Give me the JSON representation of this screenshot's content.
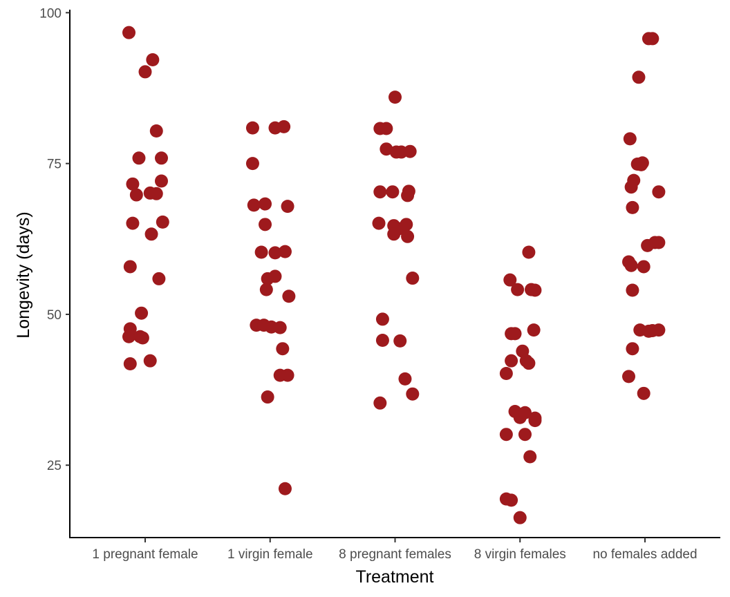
{
  "chart_data": {
    "type": "scatter",
    "xlabel": "Treatment",
    "ylabel": "Longevity (days)",
    "ylim": [
      13,
      100.5
    ],
    "yticks": [
      25,
      50,
      75,
      100
    ],
    "grid": false,
    "legend": "none",
    "point_color": "#9e1a1d",
    "categories": [
      "1 pregnant female",
      "1 virgin female",
      "8 pregnant females",
      "8 virgin females",
      "no females added"
    ],
    "points": [
      {
        "x": "1 pregnant female",
        "jitter": -0.13,
        "y": 96.7
      },
      {
        "x": "1 pregnant female",
        "jitter": 0.06,
        "y": 92.2
      },
      {
        "x": "1 pregnant female",
        "jitter": 0.0,
        "y": 90.2
      },
      {
        "x": "1 pregnant female",
        "jitter": 0.09,
        "y": 80.4
      },
      {
        "x": "1 pregnant female",
        "jitter": -0.05,
        "y": 75.9
      },
      {
        "x": "1 pregnant female",
        "jitter": 0.13,
        "y": 75.9
      },
      {
        "x": "1 pregnant female",
        "jitter": -0.1,
        "y": 71.6
      },
      {
        "x": "1 pregnant female",
        "jitter": 0.13,
        "y": 72.1
      },
      {
        "x": "1 pregnant female",
        "jitter": -0.07,
        "y": 69.8
      },
      {
        "x": "1 pregnant female",
        "jitter": 0.04,
        "y": 70.1
      },
      {
        "x": "1 pregnant female",
        "jitter": 0.09,
        "y": 70.0
      },
      {
        "x": "1 pregnant female",
        "jitter": -0.1,
        "y": 65.1
      },
      {
        "x": "1 pregnant female",
        "jitter": 0.14,
        "y": 65.3
      },
      {
        "x": "1 pregnant female",
        "jitter": 0.05,
        "y": 63.3
      },
      {
        "x": "1 pregnant female",
        "jitter": -0.12,
        "y": 57.9
      },
      {
        "x": "1 pregnant female",
        "jitter": 0.11,
        "y": 55.9
      },
      {
        "x": "1 pregnant female",
        "jitter": -0.03,
        "y": 50.2
      },
      {
        "x": "1 pregnant female",
        "jitter": -0.12,
        "y": 47.6
      },
      {
        "x": "1 pregnant female",
        "jitter": -0.13,
        "y": 46.3
      },
      {
        "x": "1 pregnant female",
        "jitter": -0.04,
        "y": 46.3
      },
      {
        "x": "1 pregnant female",
        "jitter": -0.02,
        "y": 46.1
      },
      {
        "x": "1 pregnant female",
        "jitter": 0.04,
        "y": 42.3
      },
      {
        "x": "1 pregnant female",
        "jitter": -0.12,
        "y": 41.8
      },
      {
        "x": "1 virgin female",
        "jitter": -0.14,
        "y": 80.9
      },
      {
        "x": "1 virgin female",
        "jitter": 0.04,
        "y": 80.9
      },
      {
        "x": "1 virgin female",
        "jitter": 0.11,
        "y": 81.1
      },
      {
        "x": "1 virgin female",
        "jitter": -0.14,
        "y": 75.0
      },
      {
        "x": "1 virgin female",
        "jitter": -0.13,
        "y": 68.1
      },
      {
        "x": "1 virgin female",
        "jitter": -0.04,
        "y": 68.3
      },
      {
        "x": "1 virgin female",
        "jitter": 0.14,
        "y": 67.9
      },
      {
        "x": "1 virgin female",
        "jitter": -0.04,
        "y": 64.9
      },
      {
        "x": "1 virgin female",
        "jitter": -0.07,
        "y": 60.3
      },
      {
        "x": "1 virgin female",
        "jitter": 0.04,
        "y": 60.2
      },
      {
        "x": "1 virgin female",
        "jitter": 0.12,
        "y": 60.4
      },
      {
        "x": "1 virgin female",
        "jitter": -0.02,
        "y": 55.9
      },
      {
        "x": "1 virgin female",
        "jitter": 0.04,
        "y": 56.3
      },
      {
        "x": "1 virgin female",
        "jitter": -0.03,
        "y": 54.1
      },
      {
        "x": "1 virgin female",
        "jitter": 0.15,
        "y": 53.0
      },
      {
        "x": "1 virgin female",
        "jitter": -0.11,
        "y": 48.2
      },
      {
        "x": "1 virgin female",
        "jitter": -0.05,
        "y": 48.2
      },
      {
        "x": "1 virgin female",
        "jitter": 0.01,
        "y": 47.9
      },
      {
        "x": "1 virgin female",
        "jitter": 0.08,
        "y": 47.8
      },
      {
        "x": "1 virgin female",
        "jitter": 0.1,
        "y": 44.3
      },
      {
        "x": "1 virgin female",
        "jitter": 0.08,
        "y": 39.9
      },
      {
        "x": "1 virgin female",
        "jitter": 0.14,
        "y": 39.9
      },
      {
        "x": "1 virgin female",
        "jitter": -0.02,
        "y": 36.3
      },
      {
        "x": "1 virgin female",
        "jitter": 0.12,
        "y": 21.1
      },
      {
        "x": "8 pregnant females",
        "jitter": -0.12,
        "y": 80.8
      },
      {
        "x": "8 pregnant females",
        "jitter": -0.07,
        "y": 80.8
      },
      {
        "x": "8 pregnant females",
        "jitter": 0.0,
        "y": 86.0
      },
      {
        "x": "8 pregnant females",
        "jitter": -0.07,
        "y": 77.4
      },
      {
        "x": "8 pregnant females",
        "jitter": 0.01,
        "y": 76.9
      },
      {
        "x": "8 pregnant females",
        "jitter": 0.05,
        "y": 76.9
      },
      {
        "x": "8 pregnant females",
        "jitter": 0.12,
        "y": 77.0
      },
      {
        "x": "8 pregnant females",
        "jitter": -0.12,
        "y": 70.3
      },
      {
        "x": "8 pregnant females",
        "jitter": -0.02,
        "y": 70.3
      },
      {
        "x": "8 pregnant females",
        "jitter": 0.1,
        "y": 69.7
      },
      {
        "x": "8 pregnant females",
        "jitter": 0.11,
        "y": 70.4
      },
      {
        "x": "8 pregnant females",
        "jitter": -0.13,
        "y": 65.1
      },
      {
        "x": "8 pregnant females",
        "jitter": -0.01,
        "y": 64.7
      },
      {
        "x": "8 pregnant females",
        "jitter": 0.03,
        "y": 64.2
      },
      {
        "x": "8 pregnant females",
        "jitter": 0.09,
        "y": 64.9
      },
      {
        "x": "8 pregnant females",
        "jitter": -0.01,
        "y": 63.3
      },
      {
        "x": "8 pregnant females",
        "jitter": 0.1,
        "y": 62.9
      },
      {
        "x": "8 pregnant females",
        "jitter": 0.14,
        "y": 56.0
      },
      {
        "x": "8 pregnant females",
        "jitter": -0.1,
        "y": 49.2
      },
      {
        "x": "8 pregnant females",
        "jitter": -0.1,
        "y": 45.7
      },
      {
        "x": "8 pregnant females",
        "jitter": 0.04,
        "y": 45.6
      },
      {
        "x": "8 pregnant females",
        "jitter": 0.08,
        "y": 39.3
      },
      {
        "x": "8 pregnant females",
        "jitter": 0.14,
        "y": 36.8
      },
      {
        "x": "8 pregnant females",
        "jitter": -0.12,
        "y": 35.3
      },
      {
        "x": "8 virgin females",
        "jitter": 0.07,
        "y": 60.3
      },
      {
        "x": "8 virgin females",
        "jitter": -0.08,
        "y": 55.7
      },
      {
        "x": "8 virgin females",
        "jitter": -0.02,
        "y": 54.1
      },
      {
        "x": "8 virgin females",
        "jitter": 0.09,
        "y": 54.1
      },
      {
        "x": "8 virgin females",
        "jitter": 0.12,
        "y": 54.0
      },
      {
        "x": "8 virgin females",
        "jitter": -0.07,
        "y": 46.8
      },
      {
        "x": "8 virgin females",
        "jitter": -0.04,
        "y": 46.8
      },
      {
        "x": "8 virgin females",
        "jitter": 0.11,
        "y": 47.4
      },
      {
        "x": "8 virgin females",
        "jitter": 0.02,
        "y": 43.9
      },
      {
        "x": "8 virgin females",
        "jitter": -0.07,
        "y": 42.3
      },
      {
        "x": "8 virgin females",
        "jitter": 0.05,
        "y": 42.3
      },
      {
        "x": "8 virgin females",
        "jitter": 0.07,
        "y": 41.9
      },
      {
        "x": "8 virgin females",
        "jitter": -0.11,
        "y": 40.2
      },
      {
        "x": "8 virgin females",
        "jitter": -0.04,
        "y": 33.9
      },
      {
        "x": "8 virgin females",
        "jitter": 0.0,
        "y": 32.9
      },
      {
        "x": "8 virgin females",
        "jitter": 0.04,
        "y": 33.7
      },
      {
        "x": "8 virgin females",
        "jitter": 0.12,
        "y": 32.8
      },
      {
        "x": "8 virgin females",
        "jitter": 0.12,
        "y": 32.4
      },
      {
        "x": "8 virgin females",
        "jitter": -0.11,
        "y": 30.1
      },
      {
        "x": "8 virgin females",
        "jitter": 0.04,
        "y": 30.1
      },
      {
        "x": "8 virgin females",
        "jitter": 0.08,
        "y": 26.4
      },
      {
        "x": "8 virgin females",
        "jitter": -0.11,
        "y": 19.4
      },
      {
        "x": "8 virgin females",
        "jitter": -0.07,
        "y": 19.2
      },
      {
        "x": "8 virgin females",
        "jitter": 0.0,
        "y": 16.3
      },
      {
        "x": "no females added",
        "jitter": 0.03,
        "y": 95.7
      },
      {
        "x": "no females added",
        "jitter": 0.06,
        "y": 95.7
      },
      {
        "x": "no females added",
        "jitter": -0.05,
        "y": 89.3
      },
      {
        "x": "no females added",
        "jitter": -0.12,
        "y": 79.1
      },
      {
        "x": "no females added",
        "jitter": -0.06,
        "y": 74.9
      },
      {
        "x": "no females added",
        "jitter": -0.03,
        "y": 74.8
      },
      {
        "x": "no females added",
        "jitter": -0.02,
        "y": 75.1
      },
      {
        "x": "no females added",
        "jitter": -0.09,
        "y": 72.2
      },
      {
        "x": "no females added",
        "jitter": -0.11,
        "y": 71.1
      },
      {
        "x": "no females added",
        "jitter": 0.11,
        "y": 70.3
      },
      {
        "x": "no females added",
        "jitter": -0.1,
        "y": 67.7
      },
      {
        "x": "no females added",
        "jitter": 0.02,
        "y": 61.4
      },
      {
        "x": "no females added",
        "jitter": 0.08,
        "y": 61.9
      },
      {
        "x": "no females added",
        "jitter": 0.11,
        "y": 61.9
      },
      {
        "x": "no females added",
        "jitter": -0.13,
        "y": 58.7
      },
      {
        "x": "no females added",
        "jitter": -0.11,
        "y": 58.1
      },
      {
        "x": "no females added",
        "jitter": -0.01,
        "y": 57.9
      },
      {
        "x": "no females added",
        "jitter": -0.1,
        "y": 54.0
      },
      {
        "x": "no females added",
        "jitter": -0.04,
        "y": 47.4
      },
      {
        "x": "no females added",
        "jitter": 0.03,
        "y": 47.2
      },
      {
        "x": "no females added",
        "jitter": 0.06,
        "y": 47.3
      },
      {
        "x": "no females added",
        "jitter": 0.11,
        "y": 47.4
      },
      {
        "x": "no females added",
        "jitter": -0.1,
        "y": 44.3
      },
      {
        "x": "no females added",
        "jitter": -0.13,
        "y": 39.7
      },
      {
        "x": "no females added",
        "jitter": -0.01,
        "y": 36.9
      }
    ]
  }
}
